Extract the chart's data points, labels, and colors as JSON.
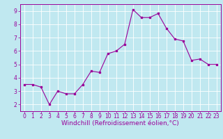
{
  "x": [
    0,
    1,
    2,
    3,
    4,
    5,
    6,
    7,
    8,
    9,
    10,
    11,
    12,
    13,
    14,
    15,
    16,
    17,
    18,
    19,
    20,
    21,
    22,
    23
  ],
  "y": [
    3.5,
    3.5,
    3.3,
    2.0,
    3.0,
    2.8,
    2.8,
    3.5,
    4.5,
    4.4,
    5.8,
    6.0,
    6.5,
    9.1,
    8.5,
    8.5,
    8.8,
    7.7,
    6.9,
    6.75,
    5.3,
    5.4,
    5.0,
    5.0
  ],
  "line_color": "#990099",
  "marker": "s",
  "marker_size": 1.8,
  "line_width": 0.8,
  "bg_color": "#c0e8f0",
  "grid_color": "#ffffff",
  "xlabel": "Windchill (Refroidissement éolien,°C)",
  "xlabel_color": "#990099",
  "xlabel_fontsize": 6.5,
  "xlim": [
    -0.5,
    23.5
  ],
  "ylim": [
    1.5,
    9.5
  ],
  "yticks": [
    2,
    3,
    4,
    5,
    6,
    7,
    8,
    9
  ],
  "xticks": [
    0,
    1,
    2,
    3,
    4,
    5,
    6,
    7,
    8,
    9,
    10,
    11,
    12,
    13,
    14,
    15,
    16,
    17,
    18,
    19,
    20,
    21,
    22,
    23
  ],
  "tick_fontsize": 5.5,
  "tick_color": "#990099",
  "spine_color": "#990099"
}
